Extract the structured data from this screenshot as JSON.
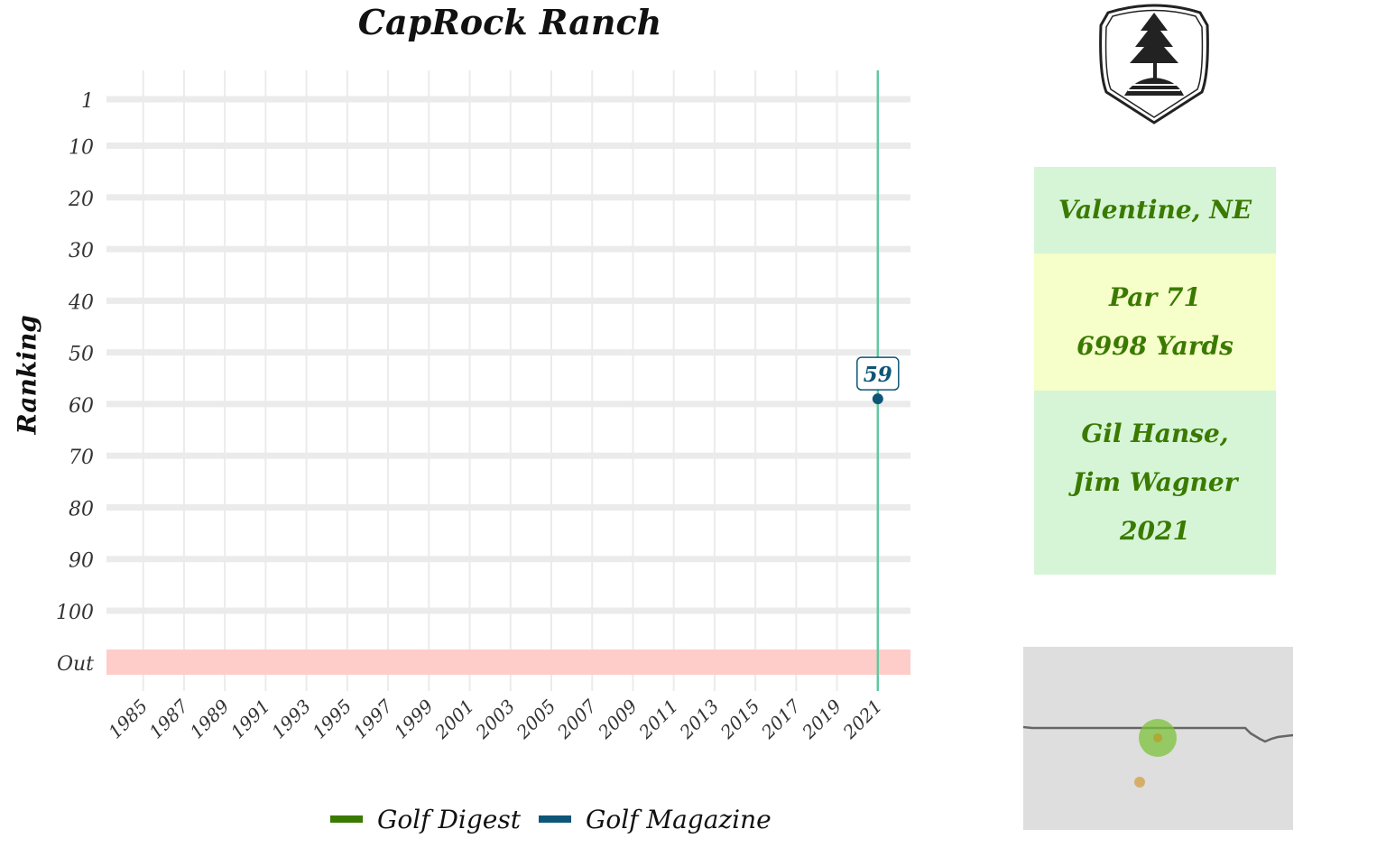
{
  "title": "CapRock Ranch",
  "chart_data": {
    "type": "line",
    "title": "CapRock Ranch",
    "ylabel": "Ranking",
    "xlabel": "",
    "x_ticks": [
      "1985",
      "1987",
      "1989",
      "1991",
      "1993",
      "1995",
      "1997",
      "1999",
      "2001",
      "2003",
      "2005",
      "2007",
      "2009",
      "2011",
      "2013",
      "2015",
      "2017",
      "2019",
      "2021"
    ],
    "y_ticks": [
      "1",
      "10",
      "20",
      "30",
      "40",
      "50",
      "60",
      "70",
      "80",
      "90",
      "100",
      "Out"
    ],
    "y_reversed": true,
    "xlim": [
      1983.2,
      2022.6
    ],
    "highlight_year": 2021,
    "out_band_label": "Out",
    "series": [
      {
        "name": "Golf Digest",
        "color": "#3a7a00",
        "points": []
      },
      {
        "name": "Golf Magazine",
        "color": "#0e5677",
        "points": [
          {
            "x": 2021,
            "y": 59
          }
        ]
      }
    ],
    "data_labels": [
      {
        "x": 2021,
        "y": 59,
        "text": "59"
      }
    ],
    "legend_position": "bottom",
    "grid": true
  },
  "info": {
    "location": "Valentine, NE",
    "par": "Par 71",
    "yards": "6998 Yards",
    "architects": [
      "Gil Hanse,",
      "Jim Wagner"
    ],
    "year": "2021"
  },
  "legend": [
    {
      "label": "Golf Digest",
      "color": "#3a7a00"
    },
    {
      "label": "Golf Magazine",
      "color": "#0e5677"
    }
  ],
  "colors": {
    "highlight_line": "#5fc9a0",
    "out_band": "#ffcdc9",
    "grid": "#ebebeb",
    "info_green_bg": "#d6f5d6",
    "info_yellow_bg": "#f6fec9",
    "info_text": "#3a7a00",
    "map_bg": "#dedede",
    "map_marker": "#7cc13a",
    "map_marker_secondary": "#d39a3a"
  },
  "map": {
    "marker_icon": "location-circle-icon",
    "secondary_marker_icon": "secondary-location-icon"
  },
  "logo_icon": "tree-on-rock-crest-icon"
}
